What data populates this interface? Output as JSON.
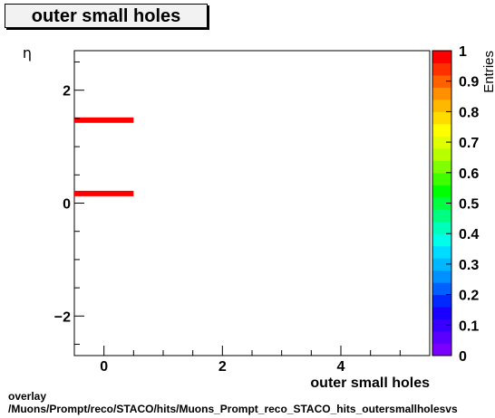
{
  "title": "outer small holes",
  "footer": {
    "line1": "overlay",
    "line2": "/Muons/Prompt/reco/STACO/hits/Muons_Prompt_reco_STACO_hits_outersmallholesvs"
  },
  "chart_data": {
    "type": "heatmap",
    "xlabel": "outer small holes",
    "ylabel": "η",
    "zlabel": "Entries",
    "xlim": [
      -0.5,
      5.5
    ],
    "ylim": [
      -2.7,
      2.7
    ],
    "x_ticks": [
      0,
      2,
      4
    ],
    "y_ticks": [
      -2,
      0,
      2
    ],
    "z_ticks": [
      "0",
      "0.1",
      "0.2",
      "0.3",
      "0.4",
      "0.5",
      "0.6",
      "0.7",
      "0.8",
      "0.9",
      "1"
    ],
    "zlim": [
      0,
      1
    ],
    "cells": [
      {
        "x": 0,
        "y": 1.47,
        "value": 1
      },
      {
        "x": 0,
        "y": 0.17,
        "value": 1
      }
    ],
    "cell_width": 1,
    "palette": [
      "#7a00ff",
      "#5a00ff",
      "#3a00ff",
      "#1a00ff",
      "#0028ff",
      "#0060ff",
      "#0090ff",
      "#00b8ff",
      "#00dcff",
      "#00ffe8",
      "#00ffb8",
      "#00ff80",
      "#00ff40",
      "#00ff00",
      "#40ff00",
      "#80ff00",
      "#b8ff00",
      "#e0ff00",
      "#ffff00",
      "#ffdc00",
      "#ffb800",
      "#ff9000",
      "#ff6000",
      "#ff3000",
      "#ff0000"
    ]
  }
}
